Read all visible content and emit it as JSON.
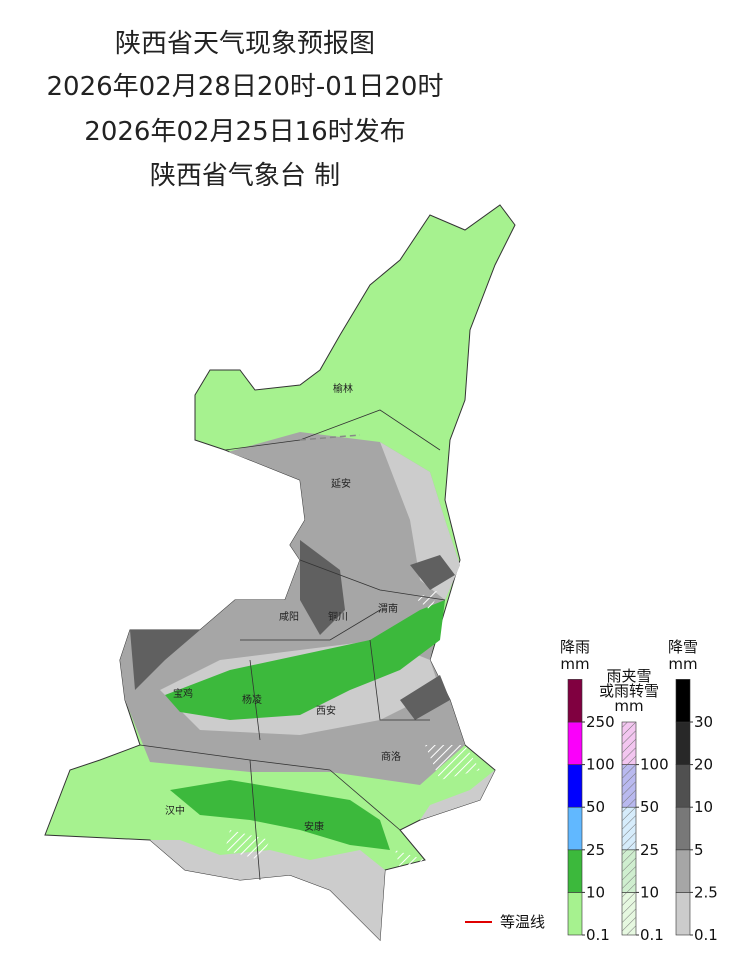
{
  "header": {
    "title": "陕西省天气现象预报图",
    "period": "2026年02月28日20时-01日20时",
    "issued": "2026年02月25日16时发布",
    "agency": "陕西省气象台 制"
  },
  "cities": [
    "榆林",
    "延安",
    "铜川",
    "渭南",
    "咸阳",
    "宝鸡",
    "杨凌",
    "西安",
    "商洛",
    "汉中",
    "安康"
  ],
  "legend": {
    "rain": {
      "title": [
        "降雨",
        "mm"
      ],
      "ticks": [
        0.1,
        10,
        25,
        50,
        100,
        250
      ],
      "colors": [
        "#a6f28f",
        "#3cb93c",
        "#61b8ff",
        "#0000fe",
        "#fa00fa",
        "#800040"
      ]
    },
    "mixed": {
      "title": [
        "雨夹雪",
        "或雨转雪",
        "mm"
      ],
      "ticks": [
        0.1,
        10,
        25,
        50,
        100
      ],
      "colors": [
        "#e6f8e0",
        "#cfeecf",
        "#d6ecfb",
        "#b9b9ef",
        "#f3c6f0"
      ]
    },
    "snow": {
      "title": [
        "降雪",
        "mm"
      ],
      "ticks": [
        0.1,
        2.5,
        5,
        10,
        20,
        30
      ],
      "colors": [
        "#cccccc",
        "#a6a6a6",
        "#787878",
        "#505050",
        "#282828",
        "#000000"
      ]
    },
    "isotherm": "等温线"
  }
}
